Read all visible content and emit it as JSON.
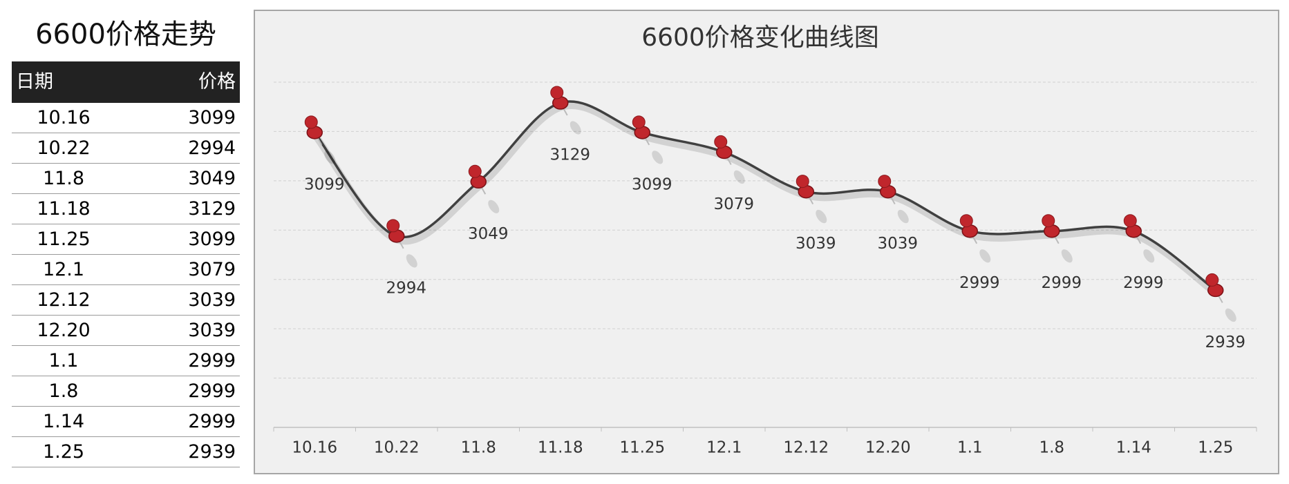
{
  "table": {
    "title": "6600价格走势",
    "columns": [
      "日期",
      "价格"
    ],
    "rows": [
      [
        "10.16",
        3099
      ],
      [
        "10.22",
        2994
      ],
      [
        "11.8",
        3049
      ],
      [
        "11.18",
        3129
      ],
      [
        "11.25",
        3099
      ],
      [
        "12.1",
        3079
      ],
      [
        "12.12",
        3039
      ],
      [
        "12.20",
        3039
      ],
      [
        "1.1",
        2999
      ],
      [
        "1.8",
        2999
      ],
      [
        "1.14",
        2999
      ],
      [
        "1.25",
        2939
      ]
    ]
  },
  "chart_data": {
    "type": "line",
    "title": "6600价格变化曲线图",
    "categories": [
      "10.16",
      "10.22",
      "11.8",
      "11.18",
      "11.25",
      "12.1",
      "12.12",
      "12.20",
      "1.1",
      "1.8",
      "1.14",
      "1.25"
    ],
    "values": [
      3099,
      2994,
      3049,
      3129,
      3099,
      3079,
      3039,
      3039,
      2999,
      2999,
      2999,
      2939
    ],
    "color": "#404040",
    "marker_color": "#c0262c",
    "ylim": [
      2800,
      3150
    ],
    "yticks": [
      2800,
      2850,
      2900,
      2950,
      3000,
      3050,
      3100,
      3150
    ],
    "grid": true
  }
}
